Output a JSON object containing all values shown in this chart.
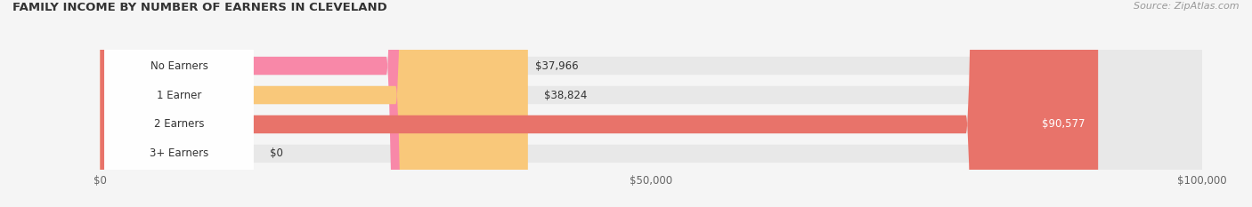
{
  "title": "FAMILY INCOME BY NUMBER OF EARNERS IN CLEVELAND",
  "source": "Source: ZipAtlas.com",
  "categories": [
    "No Earners",
    "1 Earner",
    "2 Earners",
    "3+ Earners"
  ],
  "values": [
    37966,
    38824,
    90577,
    0
  ],
  "bar_colors": [
    "#F888A8",
    "#F9C87A",
    "#E8736A",
    "#A8C4E8"
  ],
  "bar_bg_color": "#E8E8E8",
  "xlim": [
    0,
    100000
  ],
  "xticks": [
    0,
    50000,
    100000
  ],
  "xtick_labels": [
    "$0",
    "$50,000",
    "$100,000"
  ],
  "value_labels": [
    "$37,966",
    "$38,824",
    "$90,577",
    "$0"
  ],
  "fig_width": 14.06,
  "fig_height": 2.33,
  "bg_color": "#F5F5F5"
}
